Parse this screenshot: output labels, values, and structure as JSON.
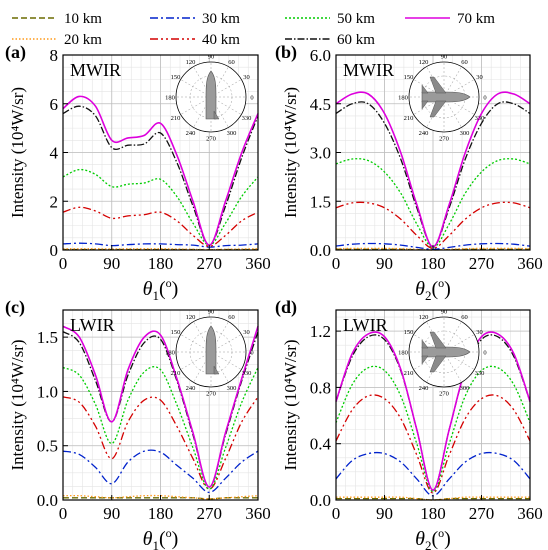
{
  "legend": [
    {
      "label": "10 km",
      "color": "#6b6b00",
      "dash": "6,3"
    },
    {
      "label": "20 km",
      "color": "#ff9a1a",
      "dash": "1.5,2"
    },
    {
      "label": "30 km",
      "color": "#0022cc",
      "dash": "8,3,2,3"
    },
    {
      "label": "40 km",
      "color": "#d40000",
      "dash": "8,3,2,3,2,3"
    },
    {
      "label": "50 km",
      "color": "#00cc00",
      "dash": "2,2"
    },
    {
      "label": "60 km",
      "color": "#111111",
      "dash": "7,2,1.5,2"
    },
    {
      "label": "70 km",
      "color": "#dd00dd",
      "dash": ""
    }
  ],
  "chart_data": [
    {
      "panel": "(a)",
      "band": "MWIR",
      "type": "line",
      "xlabel": "θ1(°)",
      "ylabel": "Intensity (10⁴W/sr)",
      "xlim": [
        0,
        360
      ],
      "ylim": [
        0,
        8
      ],
      "xticks": [
        "0",
        "90",
        "180",
        "270",
        "360"
      ],
      "yticks": [
        "0",
        "2",
        "4",
        "6",
        "8"
      ],
      "grid": true,
      "x": [
        0,
        30,
        60,
        90,
        120,
        150,
        180,
        210,
        240,
        270,
        300,
        330,
        360
      ],
      "series": [
        {
          "name": "10 km",
          "values": [
            0.02,
            0.02,
            0.02,
            0.02,
            0.02,
            0.02,
            0.02,
            0.02,
            0.02,
            0.01,
            0.02,
            0.02,
            0.02
          ]
        },
        {
          "name": "20 km",
          "values": [
            0.05,
            0.05,
            0.05,
            0.04,
            0.05,
            0.05,
            0.05,
            0.04,
            0.03,
            0.02,
            0.03,
            0.04,
            0.05
          ]
        },
        {
          "name": "30 km",
          "values": [
            0.25,
            0.28,
            0.25,
            0.18,
            0.22,
            0.25,
            0.25,
            0.22,
            0.2,
            0.12,
            0.18,
            0.2,
            0.25
          ]
        },
        {
          "name": "40 km",
          "values": [
            1.55,
            1.75,
            1.6,
            1.3,
            1.4,
            1.45,
            1.55,
            1.2,
            0.6,
            0.15,
            0.6,
            1.2,
            1.55
          ]
        },
        {
          "name": "50 km",
          "values": [
            3.0,
            3.3,
            3.1,
            2.6,
            2.7,
            2.75,
            2.9,
            2.2,
            1.1,
            0.2,
            1.1,
            2.2,
            3.0
          ]
        },
        {
          "name": "60 km",
          "values": [
            5.6,
            5.9,
            5.5,
            4.2,
            4.3,
            4.35,
            4.8,
            3.6,
            1.8,
            0.2,
            1.8,
            3.8,
            5.5
          ]
        },
        {
          "name": "70 km",
          "values": [
            5.8,
            6.3,
            5.9,
            4.5,
            4.6,
            4.7,
            5.2,
            3.9,
            2.0,
            0.2,
            2.0,
            4.0,
            5.6
          ]
        }
      ]
    },
    {
      "panel": "(b)",
      "band": "MWIR",
      "type": "line",
      "xlabel": "θ2(°)",
      "ylabel": "Intensity (10⁴W/sr)",
      "xlim": [
        0,
        360
      ],
      "ylim": [
        0,
        6
      ],
      "xticks": [
        "0",
        "90",
        "180",
        "270",
        "360"
      ],
      "yticks": [
        "0.0",
        "1.5",
        "3.0",
        "4.5",
        "6.0"
      ],
      "grid": true,
      "x": [
        0,
        30,
        60,
        90,
        120,
        150,
        180,
        210,
        240,
        270,
        300,
        330,
        360
      ],
      "series": [
        {
          "name": "10 km",
          "values": [
            0.02,
            0.02,
            0.02,
            0.02,
            0.02,
            0.01,
            0.0,
            0.01,
            0.02,
            0.02,
            0.02,
            0.02,
            0.02
          ]
        },
        {
          "name": "20 km",
          "values": [
            0.04,
            0.05,
            0.05,
            0.05,
            0.04,
            0.02,
            0.0,
            0.02,
            0.04,
            0.05,
            0.05,
            0.05,
            0.04
          ]
        },
        {
          "name": "30 km",
          "values": [
            0.12,
            0.18,
            0.2,
            0.19,
            0.15,
            0.08,
            0.02,
            0.08,
            0.15,
            0.19,
            0.2,
            0.18,
            0.12
          ]
        },
        {
          "name": "40 km",
          "values": [
            1.3,
            1.45,
            1.45,
            1.3,
            0.95,
            0.45,
            0.05,
            0.45,
            0.95,
            1.3,
            1.45,
            1.45,
            1.3
          ]
        },
        {
          "name": "50 km",
          "values": [
            2.65,
            2.8,
            2.75,
            2.4,
            1.75,
            0.8,
            0.08,
            0.8,
            1.75,
            2.4,
            2.75,
            2.8,
            2.65
          ]
        },
        {
          "name": "60 km",
          "values": [
            4.2,
            4.5,
            4.5,
            3.9,
            2.8,
            1.3,
            0.1,
            1.3,
            2.8,
            3.9,
            4.5,
            4.5,
            4.2
          ]
        },
        {
          "name": "70 km",
          "values": [
            4.5,
            4.8,
            4.8,
            4.2,
            3.0,
            1.4,
            0.1,
            1.4,
            3.0,
            4.2,
            4.8,
            4.8,
            4.5
          ]
        }
      ]
    },
    {
      "panel": "(c)",
      "band": "LWIR",
      "type": "line",
      "xlabel": "θ1(°)",
      "ylabel": "Intensity (10⁴W/sr)",
      "xlim": [
        0,
        360
      ],
      "ylim": [
        0,
        1.75
      ],
      "xticks": [
        "0",
        "90",
        "180",
        "270",
        "360"
      ],
      "yticks": [
        "0.0",
        "0.5",
        "1.0",
        "1.5"
      ],
      "grid": true,
      "x": [
        0,
        30,
        60,
        90,
        120,
        150,
        180,
        210,
        240,
        270,
        300,
        330,
        360
      ],
      "series": [
        {
          "name": "10 km",
          "values": [
            0.02,
            0.02,
            0.02,
            0.02,
            0.02,
            0.02,
            0.02,
            0.02,
            0.02,
            0.01,
            0.02,
            0.02,
            0.02
          ]
        },
        {
          "name": "20 km",
          "values": [
            0.04,
            0.04,
            0.03,
            0.02,
            0.03,
            0.04,
            0.04,
            0.03,
            0.02,
            0.01,
            0.02,
            0.03,
            0.04
          ]
        },
        {
          "name": "30 km",
          "values": [
            0.45,
            0.42,
            0.3,
            0.15,
            0.35,
            0.45,
            0.44,
            0.32,
            0.2,
            0.07,
            0.2,
            0.35,
            0.45
          ]
        },
        {
          "name": "40 km",
          "values": [
            0.95,
            0.9,
            0.68,
            0.38,
            0.72,
            0.92,
            0.92,
            0.68,
            0.38,
            0.1,
            0.38,
            0.72,
            0.95
          ]
        },
        {
          "name": "50 km",
          "values": [
            1.22,
            1.15,
            0.88,
            0.52,
            0.92,
            1.18,
            1.2,
            0.88,
            0.48,
            0.1,
            0.48,
            0.9,
            1.22
          ]
        },
        {
          "name": "60 km",
          "values": [
            1.55,
            1.45,
            1.1,
            0.72,
            1.15,
            1.45,
            1.48,
            1.1,
            0.6,
            0.12,
            0.6,
            1.1,
            1.55
          ]
        },
        {
          "name": "70 km",
          "values": [
            1.6,
            1.5,
            1.15,
            0.72,
            1.2,
            1.5,
            1.52,
            1.12,
            0.62,
            0.12,
            0.62,
            1.12,
            1.6
          ]
        }
      ]
    },
    {
      "panel": "(d)",
      "band": "LWIR",
      "type": "line",
      "xlabel": "θ2(°)",
      "ylabel": "Intensity (10⁴W/sr)",
      "xlim": [
        0,
        360
      ],
      "ylim": [
        0,
        1.35
      ],
      "xticks": [
        "0",
        "90",
        "180",
        "270",
        "360"
      ],
      "yticks": [
        "0.0",
        "0.4",
        "0.8",
        "1.2"
      ],
      "grid": true,
      "x": [
        0,
        30,
        60,
        90,
        120,
        150,
        180,
        210,
        240,
        270,
        300,
        330,
        360
      ],
      "series": [
        {
          "name": "10 km",
          "values": [
            0.01,
            0.01,
            0.01,
            0.01,
            0.01,
            0.01,
            0.0,
            0.01,
            0.01,
            0.01,
            0.01,
            0.01,
            0.01
          ]
        },
        {
          "name": "20 km",
          "values": [
            0.02,
            0.02,
            0.02,
            0.02,
            0.02,
            0.01,
            0.0,
            0.01,
            0.02,
            0.02,
            0.02,
            0.02,
            0.02
          ]
        },
        {
          "name": "30 km",
          "values": [
            0.15,
            0.28,
            0.33,
            0.33,
            0.27,
            0.15,
            0.03,
            0.15,
            0.27,
            0.33,
            0.33,
            0.28,
            0.15
          ]
        },
        {
          "name": "40 km",
          "values": [
            0.42,
            0.64,
            0.74,
            0.72,
            0.58,
            0.32,
            0.05,
            0.32,
            0.58,
            0.72,
            0.74,
            0.64,
            0.42
          ]
        },
        {
          "name": "50 km",
          "values": [
            0.55,
            0.82,
            0.94,
            0.92,
            0.74,
            0.4,
            0.06,
            0.4,
            0.74,
            0.92,
            0.94,
            0.82,
            0.55
          ]
        },
        {
          "name": "60 km",
          "values": [
            0.7,
            1.02,
            1.16,
            1.14,
            0.92,
            0.5,
            0.07,
            0.5,
            0.92,
            1.14,
            1.16,
            1.02,
            0.7
          ]
        },
        {
          "name": "70 km",
          "values": [
            0.7,
            1.04,
            1.18,
            1.16,
            0.93,
            0.5,
            0.07,
            0.5,
            0.93,
            1.16,
            1.18,
            1.04,
            0.7
          ]
        }
      ]
    }
  ],
  "polar_labels": [
    "90",
    "60",
    "30",
    "0",
    "330",
    "300",
    "270",
    "240",
    "210",
    "180",
    "150",
    "120"
  ]
}
